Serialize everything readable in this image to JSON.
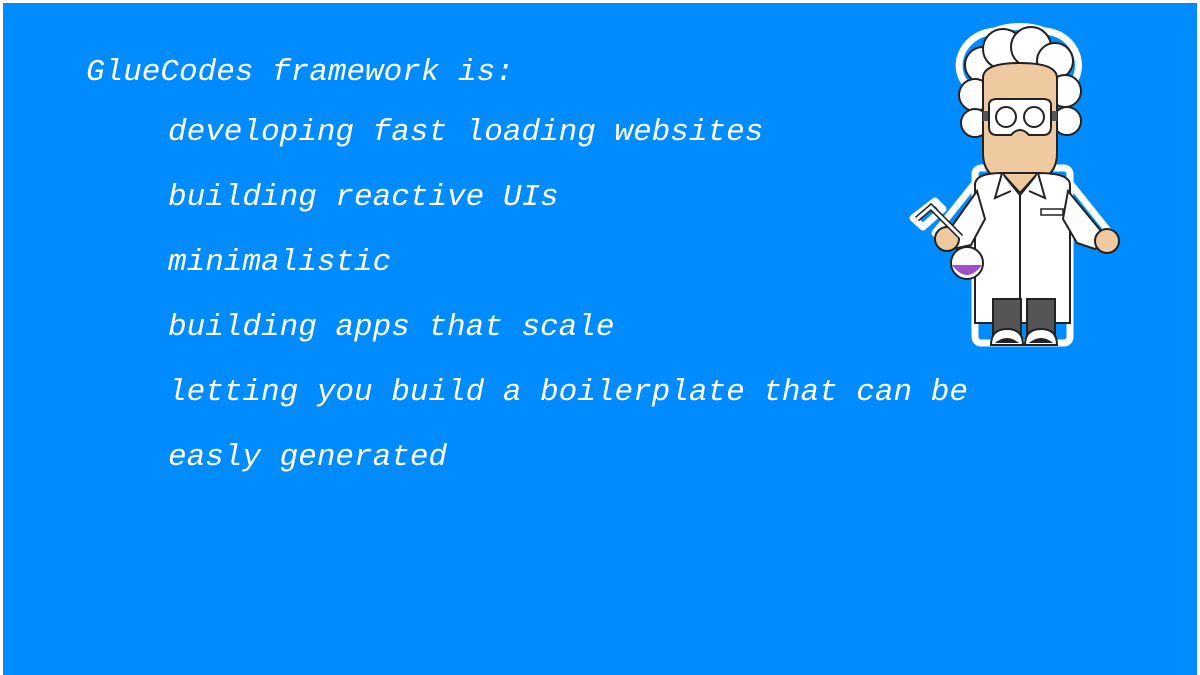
{
  "slide": {
    "background_color": "#008cff",
    "heading": "GlueCodes framework is:",
    "items": [
      "developing fast loading websites",
      "building reactive UIs",
      "minimalistic",
      "building apps that scale",
      "letting you build a boilerplate that can be",
      "easly generated"
    ]
  },
  "illustration": {
    "icon": "scientist-icon",
    "colors": {
      "skin": "#efc9a0",
      "coat": "#ffffff",
      "outline": "#222222",
      "trousers": "#555555",
      "flask_liquid": "#a04ec8"
    }
  }
}
